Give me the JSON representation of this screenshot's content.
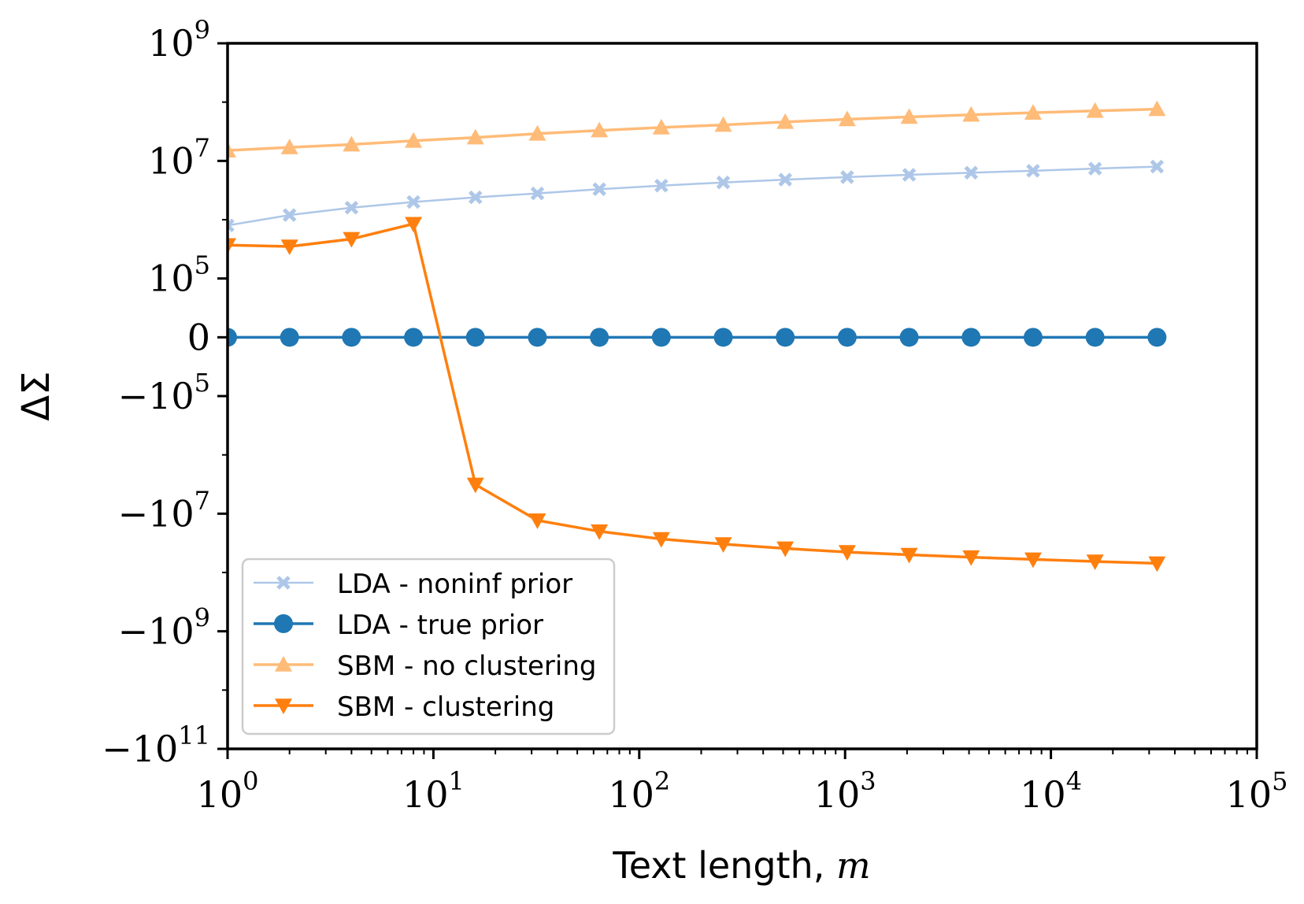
{
  "chart_data": {
    "type": "line",
    "xlabel": "Text length, m",
    "ylabel": "ΔΣ",
    "xscale": "log",
    "yscale": "symlog",
    "xlim": [
      1,
      100000
    ],
    "ylim": [
      -100000000000,
      1000000000
    ],
    "x_ticks": [
      {
        "value": 1,
        "base": "10",
        "exp": "0"
      },
      {
        "value": 10,
        "base": "10",
        "exp": "1"
      },
      {
        "value": 100,
        "base": "10",
        "exp": "2"
      },
      {
        "value": 1000,
        "base": "10",
        "exp": "3"
      },
      {
        "value": 10000,
        "base": "10",
        "exp": "4"
      },
      {
        "value": 100000,
        "base": "10",
        "exp": "5"
      }
    ],
    "y_ticks": [
      {
        "value": 1000000000,
        "base": "10",
        "exp": "9"
      },
      {
        "value": 10000000,
        "base": "10",
        "exp": "7"
      },
      {
        "value": 100000,
        "base": "10",
        "exp": "5"
      },
      {
        "value": 0,
        "base": "0",
        "exp": ""
      },
      {
        "value": -100000,
        "base": "−10",
        "exp": "5"
      },
      {
        "value": -10000000,
        "base": "−10",
        "exp": "7"
      },
      {
        "value": -1000000000,
        "base": "−10",
        "exp": "9"
      },
      {
        "value": -100000000000,
        "base": "−10",
        "exp": "11"
      }
    ],
    "grid": false,
    "legend_position": "lower-left",
    "x": [
      1,
      2,
      4,
      8,
      16,
      32,
      64,
      128,
      256,
      512,
      1024,
      2048,
      4096,
      8192,
      16384,
      32768
    ],
    "series": [
      {
        "name": "LDA - noninf prior",
        "color": "#aec7e8",
        "marker": "x",
        "values": [
          800000,
          1200000,
          1600000,
          2000000,
          2400000,
          2800000,
          3300000,
          3800000,
          4300000,
          4800000,
          5300000,
          5800000,
          6300000,
          6800000,
          7400000,
          8000000
        ]
      },
      {
        "name": "LDA - true prior",
        "color": "#1f77b4",
        "marker": "circle",
        "values": [
          0,
          0,
          0,
          0,
          0,
          0,
          0,
          0,
          0,
          0,
          0,
          0,
          0,
          0,
          0,
          0
        ]
      },
      {
        "name": "SBM - no clustering",
        "color": "#ffbb78",
        "marker": "triangle-up",
        "values": [
          15000000,
          17000000,
          19000000,
          22000000,
          25000000,
          29000000,
          33000000,
          37000000,
          41000000,
          46000000,
          51000000,
          56000000,
          61000000,
          66000000,
          71000000,
          76000000
        ]
      },
      {
        "name": "SBM - clustering",
        "color": "#ff7f0e",
        "marker": "triangle-down",
        "values": [
          370000,
          350000,
          470000,
          850000,
          -3200000,
          -13000000,
          -20000000,
          -27000000,
          -33000000,
          -39000000,
          -45000000,
          -50000000,
          -55000000,
          -60000000,
          -65000000,
          -70000000
        ]
      }
    ]
  }
}
